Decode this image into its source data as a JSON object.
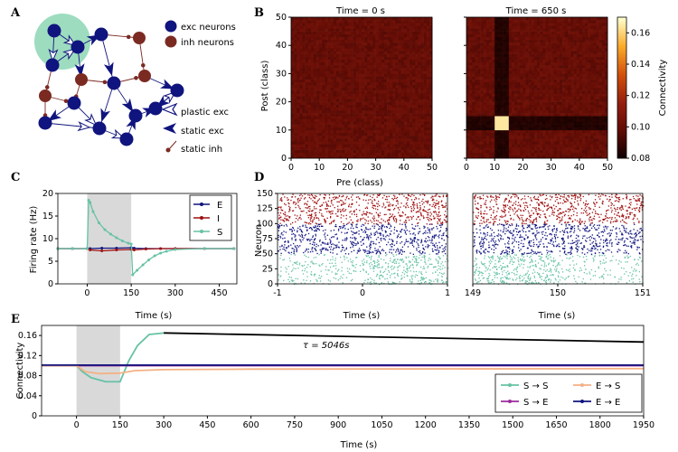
{
  "panels": {
    "A": {
      "letter": "A",
      "legend": [
        "exc neurons",
        "inh neurons",
        "plastic exc",
        "static exc",
        "static inh"
      ],
      "colors": {
        "exc": "#10147e",
        "inh": "#7b2a22",
        "cluster": "#9ddcbf"
      }
    },
    "B": {
      "letter": "B",
      "titles": [
        "Time = 0 s",
        "Time = 650 s"
      ],
      "xlabel": "Pre (class)",
      "ylabel": "Post (class)",
      "ticks": [
        "0",
        "10",
        "20",
        "30",
        "40",
        "50"
      ],
      "colorbar": {
        "label": "Connectivity",
        "ticks": [
          "0.16",
          "0.14",
          "0.12",
          "0.10",
          "0.08"
        ]
      }
    },
    "C": {
      "letter": "C",
      "ylabel": "Firing rate (Hz)",
      "xlabel": "Time (s)",
      "yticks": [
        "20",
        "15",
        "10",
        "5",
        "0"
      ],
      "xticks": [
        "0",
        "150",
        "300",
        "450"
      ],
      "legend": [
        "E",
        "I",
        "S"
      ]
    },
    "D": {
      "letter": "D",
      "ylabel": "Neuron",
      "xlabel_left": "Time (s)",
      "xlabel_right": "Time (s)",
      "yticks": [
        "150",
        "125",
        "100",
        "75",
        "50",
        "25",
        "0"
      ],
      "xticks_left": [
        "-1",
        "0",
        "1"
      ],
      "xticks_right": [
        "149",
        "150",
        "151"
      ]
    },
    "E": {
      "letter": "E",
      "ylabel": "Connectivity",
      "xlabel": "Time (s)",
      "yticks": [
        "0.16",
        "0.12",
        "0.08",
        "0.04",
        "0"
      ],
      "xticks": [
        "0",
        "150",
        "300",
        "450",
        "600",
        "750",
        "900",
        "1050",
        "1200",
        "1350",
        "1500",
        "1650",
        "1800",
        "1950"
      ],
      "annotation": "τ = 5046s",
      "legend": [
        "S → S",
        "S → E",
        "E → S",
        "E → E"
      ]
    }
  },
  "chart_data": [
    {
      "type": "heatmap",
      "panel": "B",
      "title": "Time = 0 s",
      "xlabel": "Pre (class)",
      "ylabel": "Post (class)",
      "xlim": [
        0,
        50
      ],
      "ylim": [
        0,
        50
      ],
      "baseline": 0.1,
      "clim": [
        0.08,
        0.17
      ]
    },
    {
      "type": "heatmap",
      "panel": "B",
      "title": "Time = 650 s",
      "xlabel": "Pre (class)",
      "ylabel": "Post (class)",
      "xlim": [
        0,
        50
      ],
      "ylim": [
        0,
        50
      ],
      "baseline": 0.1,
      "stimulated_class_range": [
        10,
        15
      ],
      "stimulated_row_col_value": 0.085,
      "stimulated_self_value": 0.165,
      "clim": [
        0.08,
        0.17
      ]
    },
    {
      "type": "line",
      "panel": "C",
      "xlabel": "Time (s)",
      "ylabel": "Firing rate (Hz)",
      "xlim": [
        -100,
        510
      ],
      "ylim": [
        0,
        20
      ],
      "shaded_interval": [
        0,
        150
      ],
      "series": [
        {
          "name": "E",
          "color": "#10147e",
          "x": [
            -100,
            -50,
            0,
            10,
            50,
            100,
            150,
            160,
            200,
            250,
            300,
            400,
            500
          ],
          "y": [
            7.8,
            7.8,
            7.8,
            7.8,
            7.9,
            7.9,
            8.0,
            7.9,
            7.8,
            7.8,
            7.8,
            7.8,
            7.8
          ]
        },
        {
          "name": "I",
          "color": "#a01010",
          "x": [
            -100,
            -50,
            0,
            10,
            50,
            100,
            150,
            160,
            200,
            250,
            300,
            400,
            500
          ],
          "y": [
            7.8,
            7.8,
            7.8,
            7.5,
            7.3,
            7.5,
            7.6,
            7.5,
            7.7,
            7.8,
            7.8,
            7.8,
            7.8
          ]
        },
        {
          "name": "S",
          "color": "#66c2a5",
          "x": [
            -100,
            -50,
            0,
            5,
            10,
            20,
            40,
            60,
            80,
            100,
            120,
            140,
            150,
            155,
            170,
            190,
            210,
            230,
            250,
            270,
            300,
            400,
            500
          ],
          "y": [
            7.8,
            7.8,
            7.8,
            18.5,
            18.0,
            16.0,
            13.5,
            12.0,
            11.0,
            10.2,
            9.5,
            9.0,
            8.8,
            2.0,
            3.0,
            4.2,
            5.3,
            6.2,
            6.8,
            7.2,
            7.6,
            7.8,
            7.8
          ]
        }
      ]
    },
    {
      "type": "scatter",
      "panel": "D",
      "ylabel": "Neuron",
      "xlabel": "Time (s)",
      "windows": [
        [
          -1,
          1
        ],
        [
          149,
          151
        ]
      ],
      "ylim": [
        0,
        150
      ],
      "populations": [
        {
          "name": "S",
          "color": "#66c2a5",
          "neurons": [
            0,
            50
          ]
        },
        {
          "name": "E",
          "color": "#10147e",
          "neurons": [
            50,
            100
          ]
        },
        {
          "name": "I",
          "color": "#a01010",
          "neurons": [
            100,
            150
          ]
        }
      ]
    },
    {
      "type": "line",
      "panel": "E",
      "xlabel": "Time (s)",
      "ylabel": "Connectivity",
      "xlim": [
        -120,
        1950
      ],
      "ylim": [
        0,
        0.18
      ],
      "shaded_interval": [
        0,
        150
      ],
      "series": [
        {
          "name": "S → S",
          "color": "#66c2a5",
          "x": [
            -120,
            0,
            20,
            50,
            100,
            150,
            180,
            210,
            250,
            300
          ],
          "y": [
            0.1,
            0.1,
            0.088,
            0.076,
            0.068,
            0.068,
            0.11,
            0.14,
            0.162,
            0.165
          ]
        },
        {
          "name": "S → E",
          "color": "#9b2c9b",
          "x": [
            -120,
            1950
          ],
          "y": [
            0.1,
            0.1
          ]
        },
        {
          "name": "E → S",
          "color": "#f4b183",
          "x": [
            -120,
            0,
            30,
            80,
            150,
            200,
            300,
            600,
            1950
          ],
          "y": [
            0.1,
            0.1,
            0.088,
            0.084,
            0.085,
            0.09,
            0.092,
            0.093,
            0.094
          ]
        },
        {
          "name": "E → E",
          "color": "#10147e",
          "x": [
            -120,
            1950
          ],
          "y": [
            0.101,
            0.101
          ]
        },
        {
          "name": "",
          "color": "#000000",
          "x": [
            300,
            1950
          ],
          "y": [
            0.165,
            0.147
          ]
        }
      ]
    }
  ]
}
